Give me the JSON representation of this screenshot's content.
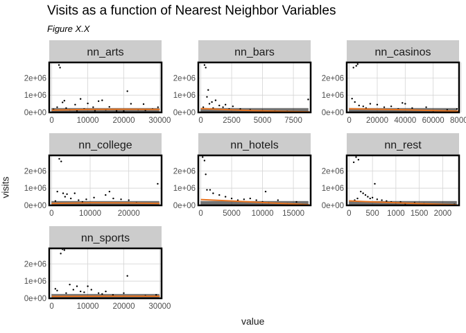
{
  "title": "Visits as a function of Nearest Neighbor Variables",
  "subtitle": "Figure X.X",
  "colors": {
    "fit_line": "#E8731E",
    "points": "#000000",
    "strip": "#CCCCCC",
    "grid": "#D4D4D4",
    "panel_border": "#000000"
  },
  "chart_data": {
    "type": "scatter",
    "title": "Visits as a function of Nearest Neighbor Variables",
    "subtitle": "Figure X.X",
    "xlabel": "value",
    "ylabel": "visits",
    "grid": true,
    "legend": "none",
    "shared_y": {
      "ylim": [
        0,
        2900000
      ],
      "ticks": [
        0,
        1000000,
        2000000
      ],
      "tick_labels": [
        "0e+00",
        "1e+06",
        "2e+06"
      ]
    },
    "panels": [
      {
        "name": "nn_arts",
        "xlim": [
          -700,
          30500
        ],
        "xticks": [
          0,
          10000,
          20000,
          30000
        ],
        "xtick_labels": [
          "0",
          "10000",
          "20000",
          "30000"
        ],
        "x": [
          2000,
          2300,
          3500,
          1500,
          3000,
          4000,
          5000,
          6500,
          8000,
          10000,
          11500,
          13000,
          14000,
          16000,
          21000,
          22000,
          25500,
          28000,
          500,
          7000,
          9000,
          12000,
          15000,
          18000,
          20000,
          24000,
          26000,
          29500
        ],
        "y": [
          2750000,
          2600000,
          680000,
          300000,
          580000,
          250000,
          150000,
          450000,
          780000,
          520000,
          300000,
          650000,
          700000,
          320000,
          1230000,
          500000,
          480000,
          200000,
          180000,
          100000,
          200000,
          100000,
          150000,
          90000,
          80000,
          160000,
          120000,
          300000
        ],
        "fit": {
          "x": [
            0,
            5000,
            10000,
            20000,
            30000
          ],
          "y": [
            130000,
            150000,
            170000,
            180000,
            170000
          ]
        }
      },
      {
        "name": "nn_bars",
        "xlim": [
          -200,
          8900
        ],
        "xticks": [
          0,
          2500,
          5000,
          7500
        ],
        "xtick_labels": [
          "0",
          "2500",
          "5000",
          "7500"
        ],
        "x": [
          300,
          400,
          600,
          700,
          200,
          500,
          900,
          1200,
          1500,
          2000,
          2600,
          3200,
          4000,
          1000,
          8700,
          1800,
          2300,
          5000,
          6000,
          7000
        ],
        "y": [
          2750000,
          2600000,
          1300000,
          500000,
          300000,
          900000,
          600000,
          700000,
          400000,
          450000,
          350000,
          200000,
          150000,
          250000,
          750000,
          300000,
          200000,
          100000,
          80000,
          60000
        ],
        "fit": {
          "x": [
            0,
            2000,
            4000,
            6000,
            8800
          ],
          "y": [
            220000,
            160000,
            110000,
            70000,
            30000
          ]
        }
      },
      {
        "name": "nn_casinos",
        "xlim": [
          -1800,
          78500
        ],
        "xticks": [
          0,
          20000,
          40000,
          60000,
          80000
        ],
        "xtick_labels": [
          "0",
          "20000",
          "40000",
          "60000",
          "80000"
        ],
        "x": [
          3000,
          5000,
          6000,
          2000,
          4000,
          7000,
          10000,
          15000,
          20000,
          25000,
          30000,
          35000,
          40000,
          45000,
          38000,
          55000,
          70000,
          77000,
          12000,
          60000
        ],
        "y": [
          2600000,
          2700000,
          2800000,
          800000,
          600000,
          400000,
          350000,
          500000,
          450000,
          300000,
          350000,
          200000,
          500000,
          250000,
          550000,
          300000,
          150000,
          200000,
          250000,
          100000
        ],
        "fit": {
          "x": [
            0,
            20000,
            40000,
            60000,
            78000
          ],
          "y": [
            210000,
            180000,
            150000,
            110000,
            70000
          ]
        }
      },
      {
        "name": "nn_college",
        "xlim": [
          -600,
          28500
        ],
        "xticks": [
          0,
          10000,
          20000
        ],
        "xtick_labels": [
          "0",
          "10000",
          "20000"
        ],
        "x": [
          2000,
          2500,
          1500,
          3000,
          3500,
          4000,
          5000,
          6000,
          7000,
          9000,
          11000,
          14000,
          15000,
          16000,
          18000,
          20000,
          27500,
          1000,
          8000,
          22000
        ],
        "y": [
          2700000,
          2550000,
          800000,
          700000,
          500000,
          650000,
          400000,
          700000,
          300000,
          350000,
          450000,
          600000,
          800000,
          400000,
          350000,
          300000,
          1250000,
          250000,
          200000,
          150000
        ],
        "fit": {
          "x": [
            0,
            5000,
            10000,
            20000,
            28000
          ],
          "y": [
            110000,
            130000,
            150000,
            140000,
            110000
          ]
        }
      },
      {
        "name": "nn_hotels",
        "xlim": [
          -400,
          17800
        ],
        "xticks": [
          0,
          5000,
          10000,
          15000
        ],
        "xtick_labels": [
          "0",
          "5000",
          "10000",
          "15000"
        ],
        "x": [
          300,
          600,
          800,
          1000,
          1500,
          2000,
          3000,
          4000,
          5000,
          6000,
          7000,
          8000,
          9000,
          10000,
          10500,
          11000,
          12500,
          14000,
          15500,
          16500
        ],
        "y": [
          2800000,
          2600000,
          1800000,
          900000,
          900000,
          700000,
          600000,
          500000,
          400000,
          300000,
          350000,
          400000,
          300000,
          200000,
          800000,
          150000,
          300000,
          100000,
          200000,
          50000
        ],
        "fit": {
          "x": [
            0,
            4000,
            8000,
            12000,
            17500
          ],
          "y": [
            340000,
            270000,
            200000,
            130000,
            40000
          ]
        }
      },
      {
        "name": "nn_rest",
        "xlim": [
          -50,
          2350
        ],
        "xticks": [
          0,
          500,
          1000,
          1500,
          2000
        ],
        "xtick_labels": [
          "0",
          "500",
          "1000",
          "1500",
          "2000"
        ],
        "x": [
          100,
          150,
          200,
          250,
          300,
          350,
          400,
          450,
          500,
          550,
          600,
          700,
          800,
          900,
          1000,
          1100,
          1200,
          1400,
          1600,
          2250,
          120,
          180
        ],
        "y": [
          2500000,
          2800000,
          2650000,
          800000,
          700000,
          600000,
          500000,
          400000,
          450000,
          1250000,
          350000,
          300000,
          250000,
          200000,
          150000,
          200000,
          100000,
          150000,
          100000,
          50000,
          300000,
          400000
        ],
        "fit": {
          "x": [
            0,
            500,
            1000,
            1500,
            2300
          ],
          "y": [
            260000,
            200000,
            150000,
            100000,
            30000
          ]
        }
      },
      {
        "name": "nn_sports",
        "xlim": [
          -700,
          30500
        ],
        "xticks": [
          0,
          10000,
          20000,
          30000
        ],
        "xtick_labels": [
          "0",
          "10000",
          "20000",
          "30000"
        ],
        "x": [
          3000,
          2500,
          3500,
          1000,
          1500,
          4000,
          5000,
          6000,
          7000,
          8000,
          9000,
          10000,
          11000,
          13000,
          14000,
          15000,
          17000,
          20000,
          21000,
          26000,
          29000
        ],
        "y": [
          2850000,
          2600000,
          2800000,
          550000,
          450000,
          300000,
          800000,
          500000,
          700000,
          400000,
          350000,
          700000,
          500000,
          300000,
          250000,
          400000,
          200000,
          300000,
          1300000,
          150000,
          200000
        ],
        "fit": {
          "x": [
            0,
            10000,
            20000,
            30000
          ],
          "y": [
            110000,
            120000,
            125000,
            120000
          ]
        }
      }
    ]
  }
}
